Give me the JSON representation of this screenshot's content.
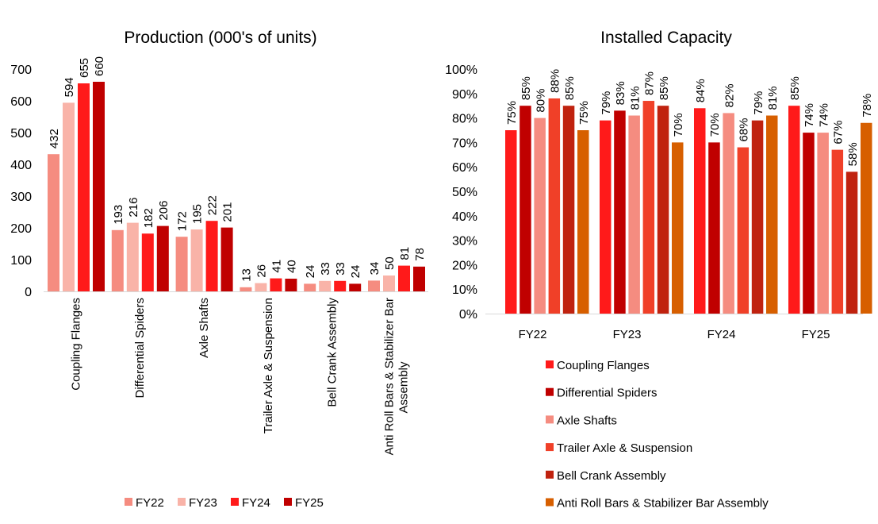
{
  "chart_data": [
    {
      "type": "bar",
      "title": "Production (000's of units)",
      "xlabel": "",
      "ylabel": "",
      "ylim": [
        0,
        700
      ],
      "yticks": [
        0,
        100,
        200,
        300,
        400,
        500,
        600,
        700
      ],
      "categories": [
        "Coupling Flanges",
        "Differential Spiders",
        "Axle Shafts",
        "Trailer Axle & Suspension",
        "Bell Crank Assembly",
        "Anti Roll Bars & Stabilizer Bar Assembly"
      ],
      "series": [
        {
          "name": "FY22",
          "color": "#F58C80",
          "values": [
            432,
            193,
            172,
            13,
            24,
            34
          ]
        },
        {
          "name": "FY23",
          "color": "#F9B3A8",
          "values": [
            594,
            216,
            195,
            26,
            33,
            50
          ]
        },
        {
          "name": "FY24",
          "color": "#FF1A1A",
          "values": [
            655,
            182,
            222,
            41,
            33,
            81
          ]
        },
        {
          "name": "FY25",
          "color": "#C00000",
          "values": [
            660,
            206,
            201,
            40,
            24,
            78
          ]
        }
      ],
      "legend": "bottom"
    },
    {
      "type": "bar",
      "title": "Installed Capacity",
      "xlabel": "",
      "ylabel": "",
      "ylim": [
        0,
        100
      ],
      "yticks": [
        "0%",
        "10%",
        "20%",
        "30%",
        "40%",
        "50%",
        "60%",
        "70%",
        "80%",
        "90%",
        "100%"
      ],
      "categories": [
        "FY22",
        "FY23",
        "FY24",
        "FY25"
      ],
      "series": [
        {
          "name": "Coupling Flanges",
          "color": "#FF1A1A",
          "values": [
            75,
            79,
            84,
            85
          ]
        },
        {
          "name": "Differential Spiders",
          "color": "#C00000",
          "values": [
            85,
            83,
            70,
            74
          ]
        },
        {
          "name": "Axle Shafts",
          "color": "#F58C80",
          "values": [
            80,
            81,
            82,
            74
          ]
        },
        {
          "name": "Trailer Axle & Suspension",
          "color": "#F04028",
          "values": [
            88,
            87,
            68,
            67
          ]
        },
        {
          "name": "Bell Crank Assembly",
          "color": "#C0220F",
          "values": [
            85,
            85,
            79,
            58
          ]
        },
        {
          "name": "Anti Roll Bars & Stabilizer Bar Assembly",
          "color": "#D75F00",
          "values": [
            75,
            70,
            81,
            78
          ]
        }
      ],
      "legend": "bottom"
    }
  ]
}
